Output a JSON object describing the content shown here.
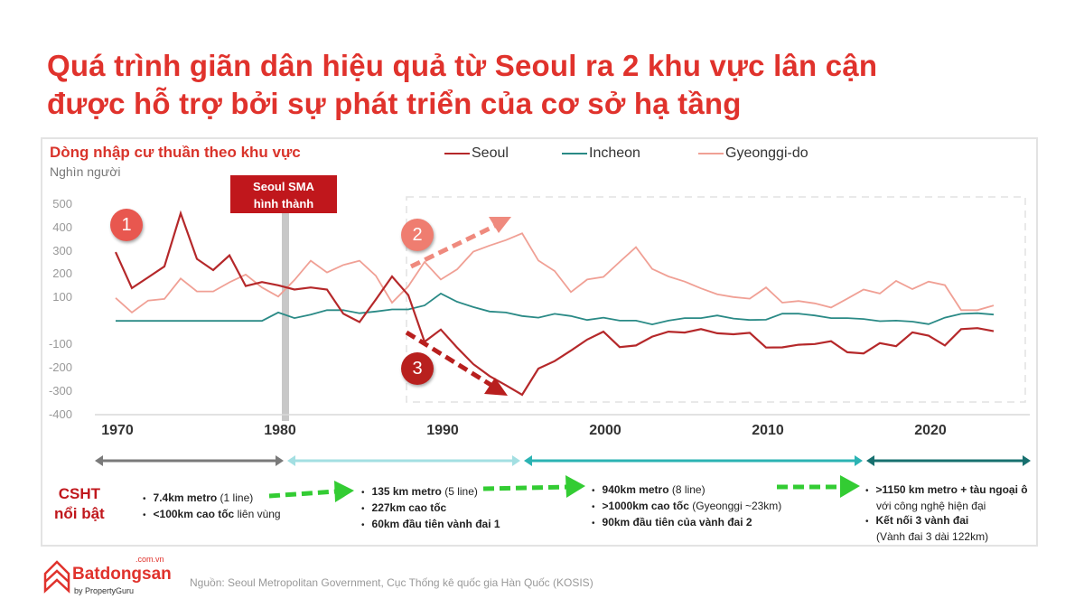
{
  "title": {
    "line1": "Quá trình giãn dân hiệu quả từ Seoul ra 2 khu vực lân cận",
    "line2": "được hỗ trợ bởi sự phát triển của cơ sở hạ tầng"
  },
  "chart_data": {
    "type": "line",
    "title": "Dòng nhập cư thuần theo khu vực",
    "ylabel": "Nghìn người",
    "xlabel": "",
    "xlim": [
      1970,
      2024
    ],
    "ylim": [
      -400,
      500
    ],
    "x_ticks": [
      1970,
      1980,
      1990,
      2000,
      2010,
      2020
    ],
    "x_tick_labels": [
      "1970",
      "1980",
      "1990",
      "2000",
      "2010",
      "2020"
    ],
    "y_ticks": [
      500,
      400,
      300,
      200,
      100,
      -100,
      -200,
      -300,
      -400
    ],
    "y_tick_labels": [
      "500",
      "400",
      "300",
      "200",
      "100",
      "-100",
      "-200",
      "-300",
      "-400"
    ],
    "grid": false,
    "legend_position": "top",
    "x": [
      1970,
      1971,
      1972,
      1973,
      1974,
      1975,
      1976,
      1977,
      1978,
      1979,
      1980,
      1981,
      1982,
      1983,
      1984,
      1985,
      1986,
      1987,
      1988,
      1989,
      1990,
      1991,
      1992,
      1993,
      1994,
      1995,
      1996,
      1997,
      1998,
      1999,
      2000,
      2001,
      2002,
      2003,
      2004,
      2005,
      2006,
      2007,
      2008,
      2009,
      2010,
      2011,
      2012,
      2013,
      2014,
      2015,
      2016,
      2017,
      2018,
      2019,
      2020,
      2021,
      2022,
      2023,
      2024
    ],
    "series": [
      {
        "name": "Seoul",
        "color": "#b5282a",
        "values": [
          294,
          140,
          186,
          233,
          460,
          265,
          217,
          280,
          149,
          166,
          152,
          134,
          143,
          134,
          31,
          -5,
          91,
          190,
          110,
          -89,
          -37,
          -114,
          -185,
          -236,
          -275,
          -316,
          -204,
          -172,
          -127,
          -80,
          -46,
          -112,
          -105,
          -67,
          -46,
          -50,
          -35,
          -53,
          -57,
          -51,
          -114,
          -113,
          -102,
          -99,
          -87,
          -134,
          -139,
          -95,
          -108,
          -49,
          -63,
          -105,
          -35,
          -31,
          -44
        ]
      },
      {
        "name": "Incheon",
        "color": "#2a8a86",
        "values": [
          0,
          0,
          0,
          0,
          0,
          0,
          0,
          0,
          0,
          0,
          36,
          12,
          27,
          46,
          46,
          33,
          40,
          49,
          49,
          66,
          117,
          82,
          59,
          40,
          36,
          21,
          14,
          30,
          21,
          4,
          14,
          1,
          1,
          -15,
          1,
          12,
          12,
          23,
          10,
          4,
          5,
          31,
          31,
          23,
          12,
          12,
          8,
          -1,
          1,
          -3,
          -14,
          14,
          30,
          33,
          27
        ]
      },
      {
        "name": "Gyeonggi-do",
        "color": "#f0a095",
        "values": [
          98,
          36,
          87,
          94,
          181,
          126,
          126,
          165,
          198,
          143,
          104,
          175,
          257,
          207,
          239,
          257,
          193,
          78,
          148,
          252,
          177,
          220,
          296,
          322,
          345,
          374,
          258,
          213,
          123,
          177,
          188,
          252,
          315,
          222,
          190,
          168,
          139,
          114,
          102,
          95,
          143,
          78,
          85,
          75,
          57,
          95,
          134,
          117,
          171,
          136,
          168,
          153,
          46,
          46,
          66
        ]
      }
    ],
    "annotations": {
      "sma_label_1": "Seoul SMA",
      "sma_label_2": "hình thành",
      "markers": [
        "1",
        "2",
        "3"
      ]
    }
  },
  "timeline": {
    "colors": [
      "#7a7a7a",
      "#a3dfe2",
      "#2bb3b3",
      "#17706f"
    ],
    "label_1": "CSHT",
    "label_2": "nổi bật",
    "arrow_color": "#33cc33",
    "columns": [
      {
        "items": [
          {
            "bold": "7.4km metro",
            "normal": " (1 line)",
            "sub": ""
          },
          {
            "bold": "<100km cao tốc",
            "normal": " liên vùng",
            "sub": ""
          }
        ]
      },
      {
        "items": [
          {
            "bold": "135 km metro",
            "normal": " (5 line)",
            "sub": ""
          },
          {
            "bold": "227km cao tốc",
            "normal": "",
            "sub": ""
          },
          {
            "bold": "60km đầu tiên vành đai 1",
            "normal": "",
            "sub": ""
          }
        ]
      },
      {
        "items": [
          {
            "bold": "940km metro",
            "normal": " (8 line)",
            "sub": ""
          },
          {
            "bold": ">1000km cao tốc",
            "normal": " (Gyeonggi ~23km)",
            "sub": ""
          },
          {
            "bold": "90km đầu tiên của vành đai 2",
            "normal": "",
            "sub": ""
          }
        ]
      },
      {
        "items": [
          {
            "bold": ">1150 km metro + tàu ngoại ô",
            "normal": "",
            "sub": "với công nghệ hiện đại"
          },
          {
            "bold": "Kết nối 3 vành đai",
            "normal": "",
            "sub": "(Vành đai 3 dài 122km)"
          }
        ]
      }
    ]
  },
  "footer": {
    "logo_name": "Batdongsan",
    "logo_domain": ".com.vn",
    "logo_by": "by PropertyGuru",
    "source": "Nguồn: Seoul Metropolitan Government, Cục Thống kê quốc gia Hàn Quốc (KOSIS)"
  }
}
